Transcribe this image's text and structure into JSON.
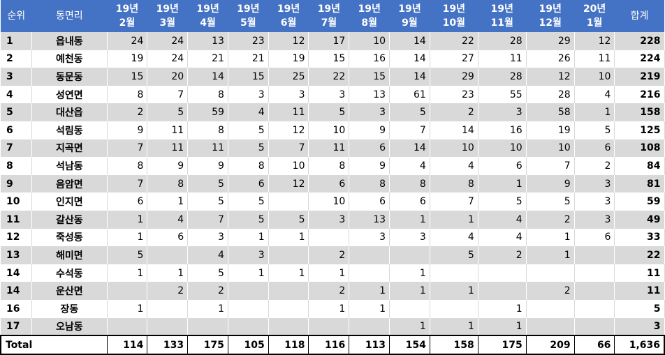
{
  "table": {
    "headers": {
      "rank": "순위",
      "name": "동면리",
      "months": [
        "19년\n2월",
        "19년\n3월",
        "19년\n4월",
        "19년\n5월",
        "19년\n6월",
        "19년\n7월",
        "19년\n8월",
        "19년\n9월",
        "19년\n10월",
        "19년\n11월",
        "19년\n12월",
        "20년\n1월"
      ],
      "total": "합계"
    },
    "rows": [
      {
        "rank": "1",
        "name": "읍내동",
        "values": [
          "24",
          "24",
          "13",
          "23",
          "12",
          "17",
          "10",
          "14",
          "22",
          "28",
          "29",
          "12"
        ],
        "total": "228"
      },
      {
        "rank": "2",
        "name": "예천동",
        "values": [
          "19",
          "24",
          "21",
          "21",
          "19",
          "15",
          "16",
          "14",
          "27",
          "11",
          "26",
          "11"
        ],
        "total": "224"
      },
      {
        "rank": "3",
        "name": "동문동",
        "values": [
          "15",
          "20",
          "14",
          "15",
          "25",
          "22",
          "15",
          "14",
          "29",
          "28",
          "12",
          "10"
        ],
        "total": "219"
      },
      {
        "rank": "4",
        "name": "성연면",
        "values": [
          "8",
          "7",
          "8",
          "3",
          "3",
          "3",
          "13",
          "61",
          "23",
          "55",
          "28",
          "4"
        ],
        "total": "216"
      },
      {
        "rank": "5",
        "name": "대산읍",
        "values": [
          "2",
          "5",
          "59",
          "4",
          "11",
          "5",
          "3",
          "5",
          "2",
          "3",
          "58",
          "1"
        ],
        "total": "158"
      },
      {
        "rank": "6",
        "name": "석림동",
        "values": [
          "9",
          "11",
          "8",
          "5",
          "12",
          "10",
          "9",
          "7",
          "14",
          "16",
          "19",
          "5"
        ],
        "total": "125"
      },
      {
        "rank": "7",
        "name": "지곡면",
        "values": [
          "7",
          "11",
          "11",
          "5",
          "7",
          "11",
          "6",
          "14",
          "10",
          "10",
          "10",
          "6"
        ],
        "total": "108"
      },
      {
        "rank": "8",
        "name": "석남동",
        "values": [
          "8",
          "9",
          "9",
          "8",
          "10",
          "8",
          "9",
          "4",
          "4",
          "6",
          "7",
          "2"
        ],
        "total": "84"
      },
      {
        "rank": "9",
        "name": "음암면",
        "values": [
          "7",
          "8",
          "5",
          "6",
          "12",
          "6",
          "8",
          "8",
          "8",
          "1",
          "9",
          "3"
        ],
        "total": "81"
      },
      {
        "rank": "10",
        "name": "인지면",
        "values": [
          "6",
          "1",
          "5",
          "5",
          "",
          "10",
          "6",
          "6",
          "7",
          "5",
          "5",
          "3"
        ],
        "total": "59"
      },
      {
        "rank": "11",
        "name": "갈산동",
        "values": [
          "1",
          "4",
          "7",
          "5",
          "5",
          "3",
          "13",
          "1",
          "1",
          "4",
          "2",
          "3"
        ],
        "total": "49"
      },
      {
        "rank": "12",
        "name": "죽성동",
        "values": [
          "1",
          "6",
          "3",
          "1",
          "1",
          "",
          "3",
          "3",
          "4",
          "4",
          "1",
          "6"
        ],
        "total": "33"
      },
      {
        "rank": "13",
        "name": "해미면",
        "values": [
          "5",
          "",
          "4",
          "3",
          "",
          "2",
          "",
          "",
          "5",
          "2",
          "1",
          ""
        ],
        "total": "22"
      },
      {
        "rank": "14",
        "name": "수석동",
        "values": [
          "1",
          "1",
          "5",
          "1",
          "1",
          "1",
          "",
          "1",
          "",
          "",
          "",
          ""
        ],
        "total": "11"
      },
      {
        "rank": "14",
        "name": "운산면",
        "values": [
          "",
          "2",
          "2",
          "",
          "",
          "2",
          "1",
          "1",
          "1",
          "",
          "2",
          ""
        ],
        "total": "11"
      },
      {
        "rank": "16",
        "name": "장동",
        "values": [
          "1",
          "",
          "1",
          "",
          "",
          "1",
          "1",
          "",
          "",
          "1",
          "",
          ""
        ],
        "total": "5"
      },
      {
        "rank": "17",
        "name": "오남동",
        "values": [
          "",
          "",
          "",
          "",
          "",
          "",
          "",
          "1",
          "1",
          "1",
          "",
          ""
        ],
        "total": "3"
      }
    ],
    "footer": {
      "label": "Total",
      "values": [
        "114",
        "133",
        "175",
        "105",
        "118",
        "116",
        "113",
        "154",
        "158",
        "175",
        "209",
        "66"
      ],
      "total": "1,636"
    }
  }
}
